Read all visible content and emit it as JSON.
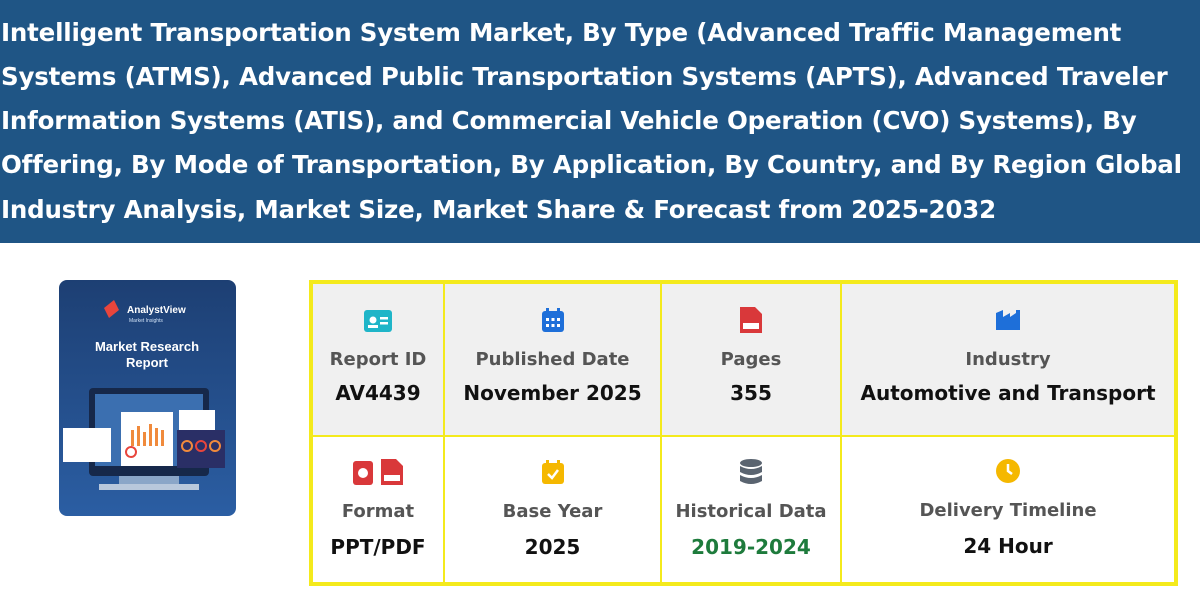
{
  "header": {
    "title_lines": [
      "Intelligent Transportation System Market, By Type (Advanced Traffic Management",
      "Systems (ATMS), Advanced Public Transportation Systems (APTS), Advanced Traveler",
      "Information Systems (ATIS), and Commercial Vehicle Operation (CVO) Systems), By",
      "Offering, By Mode of Transportation, By Application, By Country, and By Region Global",
      "Industry Analysis, Market Size, Market Share & Forecast from 2025-2032"
    ]
  },
  "cover": {
    "brand": "AnalystView",
    "tagline": "Market Insights",
    "heading_lines": [
      "Market Research",
      "Report"
    ]
  },
  "table": {
    "rows": [
      [
        {
          "label": "Report ID",
          "value": "AV4439"
        },
        {
          "label": "Published Date",
          "value": "November 2025"
        },
        {
          "label": "Pages",
          "value": "355"
        },
        {
          "label": "Industry",
          "value": "Automotive and Transport"
        }
      ],
      [
        {
          "label": "Format",
          "value": "PPT/PDF"
        },
        {
          "label": "Base Year",
          "value": "2025"
        },
        {
          "label": "Historical Data",
          "value": "2019-2024"
        },
        {
          "label": "Delivery Timeline",
          "value": "24 Hour"
        }
      ]
    ]
  }
}
